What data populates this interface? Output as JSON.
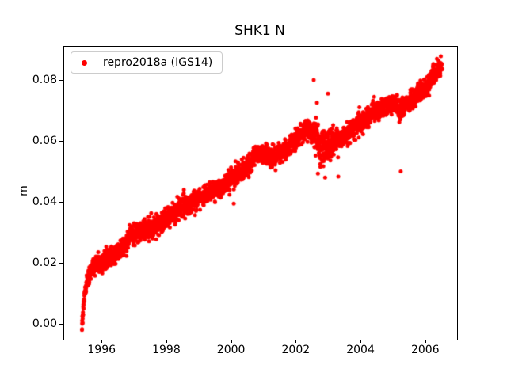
{
  "figure": {
    "title": "SHK1 N",
    "ylabel": "m",
    "background_color": "#ffffff",
    "axes_edge_color": "#000000"
  },
  "legend": {
    "label": "repro2018a (IGS14)",
    "marker": "red-dot",
    "position": "upper left"
  },
  "chart_data": {
    "type": "scatter",
    "title": "SHK1 N",
    "xlabel": "",
    "ylabel": "m",
    "grid": false,
    "legend_position": "upper left",
    "series_name": "repro2018a (IGS14)",
    "marker_color": "#ff0000",
    "marker_shape": "circle",
    "marker_diameter_px": 5,
    "xlim": [
      1994.82,
      2006.96
    ],
    "ylim": [
      -0.0047,
      0.0914
    ],
    "xticks": [
      1996,
      1998,
      2000,
      2002,
      2004,
      2006
    ],
    "xtick_labels": [
      "1996",
      "1998",
      "2000",
      "2002",
      "2004",
      "2006"
    ],
    "yticks": [
      0.0,
      0.02,
      0.04,
      0.06,
      0.08
    ],
    "ytick_labels": [
      "0.00",
      "0.02",
      "0.04",
      "0.06",
      "0.08"
    ],
    "data_time_range": [
      1995.37,
      2006.5
    ],
    "points_per_year": 330,
    "dropout_fraction": 0.08,
    "noise_sd_m": 0.0016,
    "noise_regions": [
      {
        "from": 1995.3,
        "to": 1995.8,
        "sd": 0.0012
      },
      {
        "from": 2002.55,
        "to": 2003.15,
        "sd": 0.003
      }
    ],
    "trend_points": [
      [
        1995.37,
        0.0005
      ],
      [
        1995.4,
        0.004
      ],
      [
        1995.44,
        0.009
      ],
      [
        1995.5,
        0.013
      ],
      [
        1995.58,
        0.016
      ],
      [
        1995.7,
        0.019
      ],
      [
        1995.9,
        0.0205
      ],
      [
        1996.1,
        0.021
      ],
      [
        1996.3,
        0.0225
      ],
      [
        1996.55,
        0.0245
      ],
      [
        1996.7,
        0.026
      ],
      [
        1996.85,
        0.0295
      ],
      [
        1997.0,
        0.0305
      ],
      [
        1997.3,
        0.031
      ],
      [
        1997.6,
        0.032
      ],
      [
        1997.9,
        0.034
      ],
      [
        1998.2,
        0.037
      ],
      [
        1998.5,
        0.039
      ],
      [
        1999.0,
        0.0415
      ],
      [
        1999.3,
        0.0435
      ],
      [
        1999.6,
        0.045
      ],
      [
        1999.9,
        0.047
      ],
      [
        2000.1,
        0.049
      ],
      [
        2000.4,
        0.051
      ],
      [
        2000.7,
        0.0555
      ],
      [
        2000.9,
        0.056
      ],
      [
        2001.2,
        0.055
      ],
      [
        2001.5,
        0.0565
      ],
      [
        2001.8,
        0.059
      ],
      [
        2002.05,
        0.062
      ],
      [
        2002.35,
        0.0645
      ],
      [
        2002.55,
        0.063
      ],
      [
        2002.75,
        0.058
      ],
      [
        2003.0,
        0.0585
      ],
      [
        2003.2,
        0.061
      ],
      [
        2003.5,
        0.0625
      ],
      [
        2003.8,
        0.065
      ],
      [
        2004.0,
        0.067
      ],
      [
        2004.4,
        0.07
      ],
      [
        2004.8,
        0.0725
      ],
      [
        2005.0,
        0.0722
      ],
      [
        2005.2,
        0.0705
      ],
      [
        2005.45,
        0.073
      ],
      [
        2005.7,
        0.0755
      ],
      [
        2006.0,
        0.078
      ],
      [
        2006.25,
        0.082
      ],
      [
        2006.5,
        0.085
      ]
    ],
    "outliers": [
      [
        2002.53,
        0.0805
      ],
      [
        2002.63,
        0.073
      ],
      [
        2002.97,
        0.076
      ],
      [
        2002.66,
        0.0498
      ],
      [
        2003.29,
        0.0488
      ],
      [
        2005.22,
        0.0505
      ],
      [
        2000.06,
        0.0399
      ],
      [
        1999.93,
        0.0428
      ]
    ]
  }
}
